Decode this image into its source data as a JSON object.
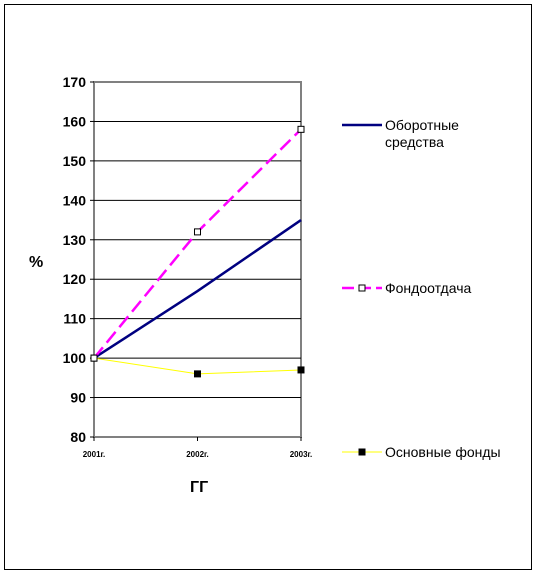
{
  "chart_data": {
    "type": "line",
    "categories": [
      "2001г.",
      "2002г.",
      "2003г."
    ],
    "ylabel": "%",
    "xlabel": "ГГ",
    "ylim": [
      80,
      170
    ],
    "yticks": [
      "170",
      "160",
      "150",
      "140",
      "130",
      "120",
      "110",
      "100",
      "90",
      "80"
    ],
    "grid": "horizontal",
    "legend_position": "right",
    "series": [
      {
        "name": "Оборотные средства",
        "name_lines": [
          "Оборотные",
          "средства"
        ],
        "values": [
          100,
          117,
          135
        ],
        "color": "#000080",
        "style": "solid",
        "marker": "none"
      },
      {
        "name": "Фондоотдача",
        "name_lines": [
          "Фондоотдача"
        ],
        "values": [
          100,
          132,
          158
        ],
        "color": "#ff00ff",
        "style": "dashed",
        "marker": "square-open"
      },
      {
        "name": "Основные фонды",
        "name_lines": [
          "Основные фонды"
        ],
        "values": [
          100,
          96,
          97
        ],
        "color": "#ffff00",
        "style": "solid",
        "marker": "square-filled"
      }
    ]
  }
}
